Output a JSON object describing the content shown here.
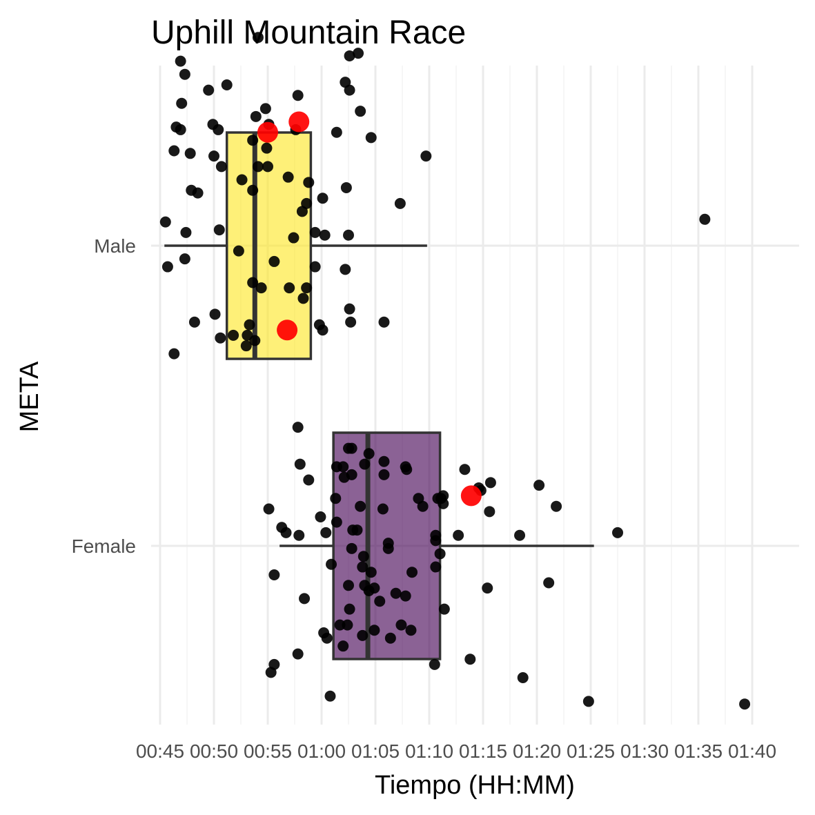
{
  "chart_data": {
    "type": "boxplot",
    "title": "Uphill Mountain Race",
    "xlabel": "Tiempo (HH:MM)",
    "ylabel": "META",
    "x_unit": "minutes",
    "xlim": [
      44,
      102
    ],
    "x_ticks": [
      {
        "value": 45,
        "label": "00:45"
      },
      {
        "value": 50,
        "label": "00:50"
      },
      {
        "value": 55,
        "label": "00:55"
      },
      {
        "value": 60,
        "label": "01:00"
      },
      {
        "value": 65,
        "label": "01:05"
      },
      {
        "value": 70,
        "label": "01:10"
      },
      {
        "value": 75,
        "label": "01:15"
      },
      {
        "value": 80,
        "label": "01:20"
      },
      {
        "value": 85,
        "label": "01:25"
      },
      {
        "value": 90,
        "label": "01:30"
      },
      {
        "value": 95,
        "label": "01:35"
      },
      {
        "value": 100,
        "label": "01:40"
      }
    ],
    "categories": [
      "Female",
      "Male"
    ],
    "grid": true,
    "legend": "none",
    "point_color": "#000000",
    "highlight_color": "#ff0000",
    "groups": [
      {
        "category": "Male",
        "fill": "#fde725",
        "box": {
          "whisker_low": 45.4,
          "q1": 51.2,
          "median": 53.8,
          "q3": 59.0,
          "whisker_high": 69.8
        },
        "points": [
          [
            46.3,
            0.36
          ],
          [
            54.1,
            0.3
          ],
          [
            56.9,
            0.26
          ],
          [
            59.4,
            0.05
          ],
          [
            47.3,
            -0.05
          ],
          [
            52.6,
            0.25
          ],
          [
            54.4,
            -0.16
          ],
          [
            47.9,
            0.21
          ],
          [
            48.2,
            -0.29
          ],
          [
            52.3,
            -0.02
          ],
          [
            53.6,
            0.21
          ],
          [
            49.5,
            0.59
          ],
          [
            58.2,
            0.13
          ],
          [
            58.6,
            -0.16
          ],
          [
            54.8,
            0.52
          ],
          [
            46.9,
            0.7
          ],
          [
            62.2,
            -0.09
          ],
          [
            53.3,
            -0.3
          ],
          [
            55.6,
            -0.06
          ],
          [
            59.4,
            -0.08
          ],
          [
            55.1,
            0.46
          ],
          [
            53.6,
            0.4
          ],
          [
            47.4,
            0.05
          ],
          [
            60.3,
            0.04
          ],
          [
            54.1,
            0.79
          ],
          [
            59.8,
            -0.3
          ],
          [
            62.6,
            -0.24
          ],
          [
            57.8,
            0.57
          ],
          [
            50.1,
            -0.26
          ],
          [
            47.3,
            0.65
          ],
          [
            58.8,
            0.24
          ],
          [
            50.4,
            0.44
          ],
          [
            51.2,
            0.61
          ],
          [
            57.6,
            0.44
          ],
          [
            58.3,
            -0.2
          ],
          [
            50.5,
            0.06
          ],
          [
            57.0,
            -0.16
          ],
          [
            54.9,
            0.37
          ],
          [
            55.0,
            0.3
          ],
          [
            67.3,
            0.16
          ],
          [
            45.7,
            -0.08
          ],
          [
            53.0,
            -0.38
          ],
          [
            62.2,
            0.62
          ],
          [
            46.3,
            -0.41
          ],
          [
            46.5,
            0.45
          ],
          [
            53.9,
            0.49
          ],
          [
            49.9,
            0.46
          ],
          [
            62.3,
            0.22
          ],
          [
            63.6,
            0.51
          ],
          [
            47.0,
            0.54
          ],
          [
            47.8,
            0.35
          ],
          [
            51.8,
            -0.34
          ],
          [
            62.7,
            -0.29
          ],
          [
            62.5,
            0.04
          ],
          [
            53.8,
            -0.36
          ],
          [
            58.6,
            0.16
          ],
          [
            63.4,
            0.73
          ],
          [
            48.5,
            0.2
          ],
          [
            65.8,
            -0.29
          ],
          [
            62.6,
            0.72
          ],
          [
            50.0,
            0.34
          ],
          [
            50.6,
            -0.35
          ],
          [
            64.6,
            0.41
          ],
          [
            53.6,
            -0.14
          ],
          [
            53.1,
            -0.34
          ],
          [
            62.6,
            0.59
          ],
          [
            45.5,
            0.09
          ],
          [
            50.7,
            0.3
          ],
          [
            60.1,
            -0.32
          ],
          [
            61.4,
            0.43
          ],
          [
            46.9,
            0.44
          ],
          [
            57.4,
            0.03
          ],
          [
            95.6,
            0.1
          ],
          [
            69.7,
            0.34
          ],
          [
            60.1,
            0.18
          ]
        ],
        "highlight_points": [
          [
            55.0,
            0.43
          ],
          [
            57.9,
            0.47
          ],
          [
            56.8,
            -0.32
          ]
        ]
      },
      {
        "category": "Female",
        "fill": "#440154",
        "box": {
          "whisker_low": 56.1,
          "q1": 61.1,
          "median": 64.3,
          "q3": 71.0,
          "whisker_high": 85.3
        },
        "points": [
          [
            99.3,
            -0.6
          ],
          [
            60.2,
            -0.33
          ],
          [
            73.3,
            0.29
          ],
          [
            67.8,
            -0.19
          ],
          [
            63.6,
            0.15
          ],
          [
            64.4,
            0.35
          ],
          [
            61.4,
            0.3
          ],
          [
            70.6,
            0.02
          ],
          [
            65.8,
            0.27
          ],
          [
            62.8,
            0.37
          ],
          [
            70.6,
            -0.08
          ],
          [
            62.5,
            0.37
          ],
          [
            62.8,
            0.27
          ],
          [
            65.8,
            0.32
          ],
          [
            61.4,
            0.09
          ],
          [
            68.4,
            -0.1
          ],
          [
            66.2,
            0.01
          ],
          [
            57.8,
            0.45
          ],
          [
            63.8,
            -0.08
          ],
          [
            62.8,
            -0.01
          ],
          [
            74.6,
            0.22
          ],
          [
            59.9,
            0.11
          ],
          [
            60.4,
            0.05
          ],
          [
            64.4,
            -0.17
          ],
          [
            69.4,
            0.15
          ],
          [
            66.2,
            -0.01
          ],
          [
            60.5,
            -0.35
          ],
          [
            61.7,
            -0.3
          ],
          [
            63.9,
            -0.04
          ],
          [
            67.8,
            0.3
          ],
          [
            71.1,
            0.18
          ],
          [
            62.0,
            -0.38
          ],
          [
            62.1,
            0.26
          ],
          [
            80.2,
            0.23
          ],
          [
            67.9,
            0.29
          ],
          [
            64.6,
            -0.1
          ],
          [
            81.8,
            0.15
          ],
          [
            72.7,
            0.04
          ],
          [
            68.3,
            -0.32
          ],
          [
            69.0,
            0.18
          ],
          [
            62.9,
            0.06
          ],
          [
            62.4,
            -0.3
          ],
          [
            70.6,
            0.04
          ],
          [
            84.8,
            -0.59
          ],
          [
            55.6,
            -0.11
          ],
          [
            55.6,
            -0.45
          ],
          [
            70.8,
            0.18
          ],
          [
            78.7,
            -0.5
          ],
          [
            57.8,
            -0.41
          ],
          [
            56.7,
            0.05
          ],
          [
            71.0,
            -0.03
          ],
          [
            56.3,
            0.07
          ],
          [
            60.9,
            -0.07
          ],
          [
            58.0,
            0.31
          ],
          [
            64.0,
            -0.15
          ],
          [
            64.9,
            -0.32
          ],
          [
            62.0,
            0.3
          ],
          [
            55.3,
            -0.48
          ],
          [
            58.8,
            0.25
          ],
          [
            65.7,
            0.14
          ],
          [
            71.3,
            0.19
          ],
          [
            63.3,
            0.06
          ],
          [
            58.4,
            -0.2
          ],
          [
            78.4,
            0.04
          ],
          [
            71.3,
            0.16
          ],
          [
            64.9,
            -0.16
          ],
          [
            64.0,
            0.31
          ],
          [
            61.3,
            0.18
          ],
          [
            75.6,
            0.13
          ],
          [
            63.8,
            -0.34
          ],
          [
            55.1,
            0.14
          ],
          [
            87.5,
            0.05
          ],
          [
            74.8,
            0.21
          ],
          [
            60.8,
            -0.57
          ],
          [
            66.9,
            -0.18
          ],
          [
            57.9,
            0.04
          ],
          [
            62.5,
            -0.15
          ],
          [
            75.4,
            -0.16
          ],
          [
            67.4,
            -0.3
          ],
          [
            73.8,
            -0.43
          ],
          [
            66.4,
            -0.35
          ],
          [
            71.4,
            -0.24
          ],
          [
            75.7,
            0.24
          ],
          [
            70.5,
            -0.45
          ],
          [
            65.4,
            -0.21
          ],
          [
            81.1,
            -0.14
          ],
          [
            62.6,
            -0.24
          ]
        ],
        "highlight_points": [
          [
            73.9,
            0.19
          ]
        ]
      }
    ]
  }
}
